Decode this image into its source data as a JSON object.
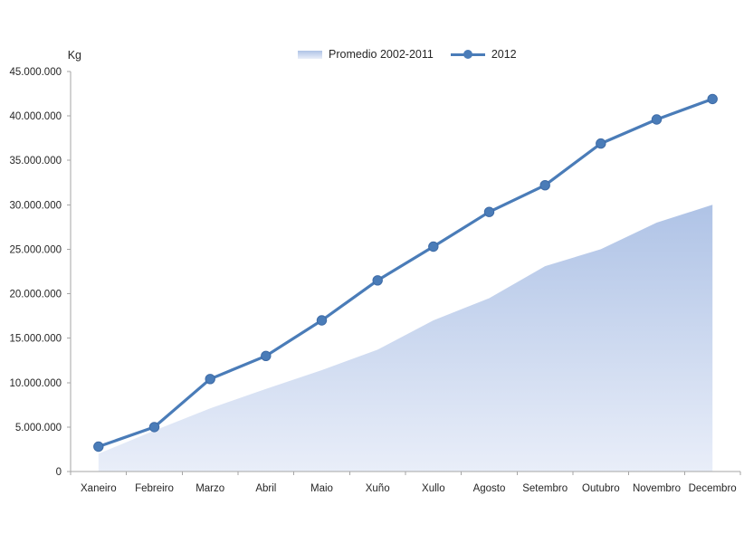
{
  "chart_data": {
    "type": "combo-area-line",
    "unit_label": "Kg",
    "categories": [
      "Xaneiro",
      "Febreiro",
      "Marzo",
      "Abril",
      "Maio",
      "Xuño",
      "Xullo",
      "Agosto",
      "Setembro",
      "Outubro",
      "Novembro",
      "Decembro"
    ],
    "series": [
      {
        "name": "Promedio 2002-2011",
        "type": "area",
        "fill_top": "#AFC3E6",
        "fill_bottom": "#E9EEF9",
        "values": [
          2000000,
          4600000,
          7100000,
          9300000,
          11400000,
          13700000,
          17000000,
          19500000,
          23100000,
          25000000,
          28000000,
          30000000
        ]
      },
      {
        "name": "2012",
        "type": "line",
        "color": "#4A7CB8",
        "marker": "circle",
        "marker_color": "#3E6BA6",
        "values": [
          2800000,
          5000000,
          10400000,
          13000000,
          17000000,
          21500000,
          25300000,
          29200000,
          32200000,
          36900000,
          39600000,
          41900000
        ]
      }
    ],
    "y_axis": {
      "min": 0,
      "max": 45000000,
      "tick_interval": 5000000,
      "tick_labels": [
        "0",
        "5.000.000",
        "10.000.000",
        "15.000.000",
        "20.000.000",
        "25.000.000",
        "30.000.000",
        "35.000.000",
        "40.000.000",
        "45.000.000"
      ]
    },
    "legend_position": "top",
    "grid": false,
    "colors": {
      "axis": "#A6A6A6",
      "text": "#262626"
    }
  }
}
